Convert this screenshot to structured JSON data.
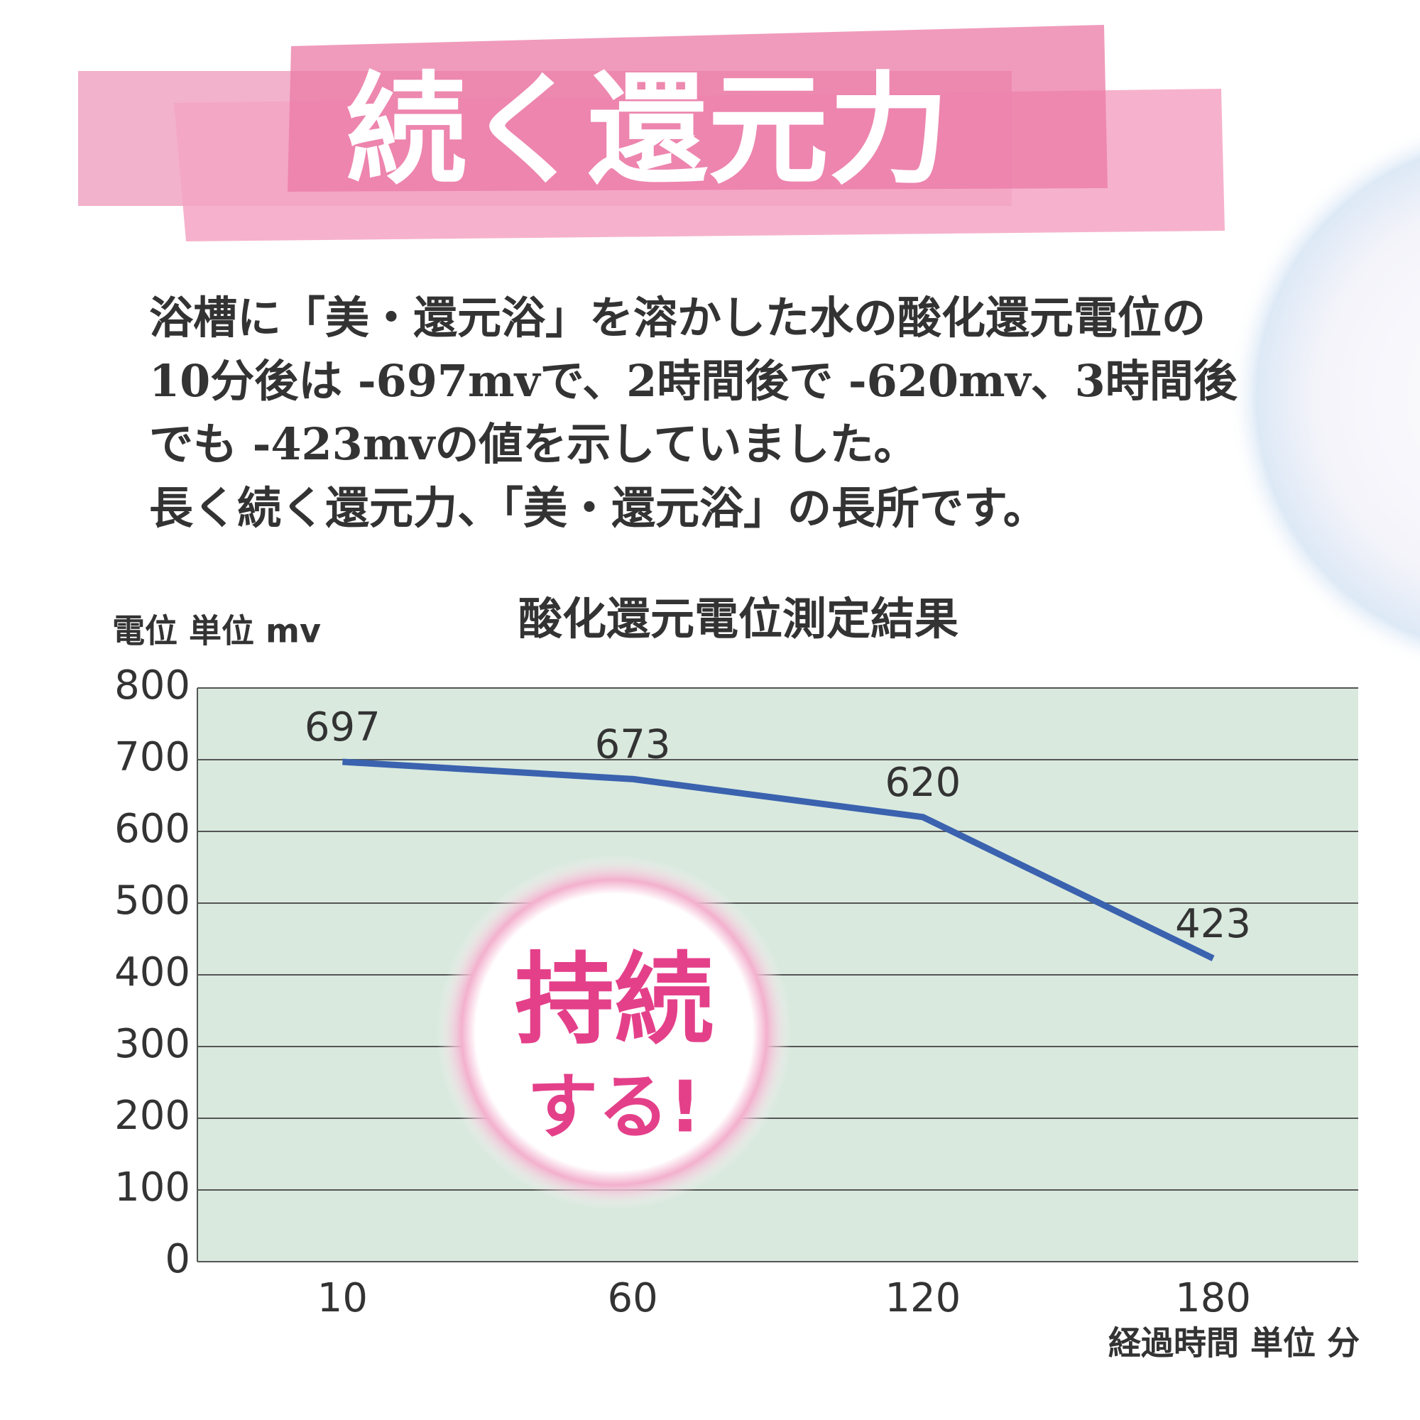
{
  "banner": "続く還元力",
  "description": [
    "浴槽に「美・還元浴」を溶かした水の酸化還元電位の",
    "10分後は -697mvで、2時間後で -620mv、3時間後",
    "でも -423mvの値を示していました。",
    "長く続く還元力、「美・還元浴」の長所です。"
  ],
  "badge": [
    "持続",
    "する!"
  ],
  "chart_data": {
    "type": "line",
    "title": "酸化還元電位測定結果",
    "y_label": "電位 単位 mv",
    "x_label": "経過時間 単位 分",
    "categories": [
      "10",
      "60",
      "120",
      "180"
    ],
    "series": [
      {
        "name": "酸化還元電位",
        "color": "#3a62ae",
        "values": [
          697,
          673,
          620,
          423
        ]
      }
    ],
    "ylim": [
      0,
      800
    ],
    "yticks": [
      0,
      100,
      200,
      300,
      400,
      500,
      600,
      700,
      800
    ],
    "grid": true,
    "plot_background": "#d9e9de"
  }
}
